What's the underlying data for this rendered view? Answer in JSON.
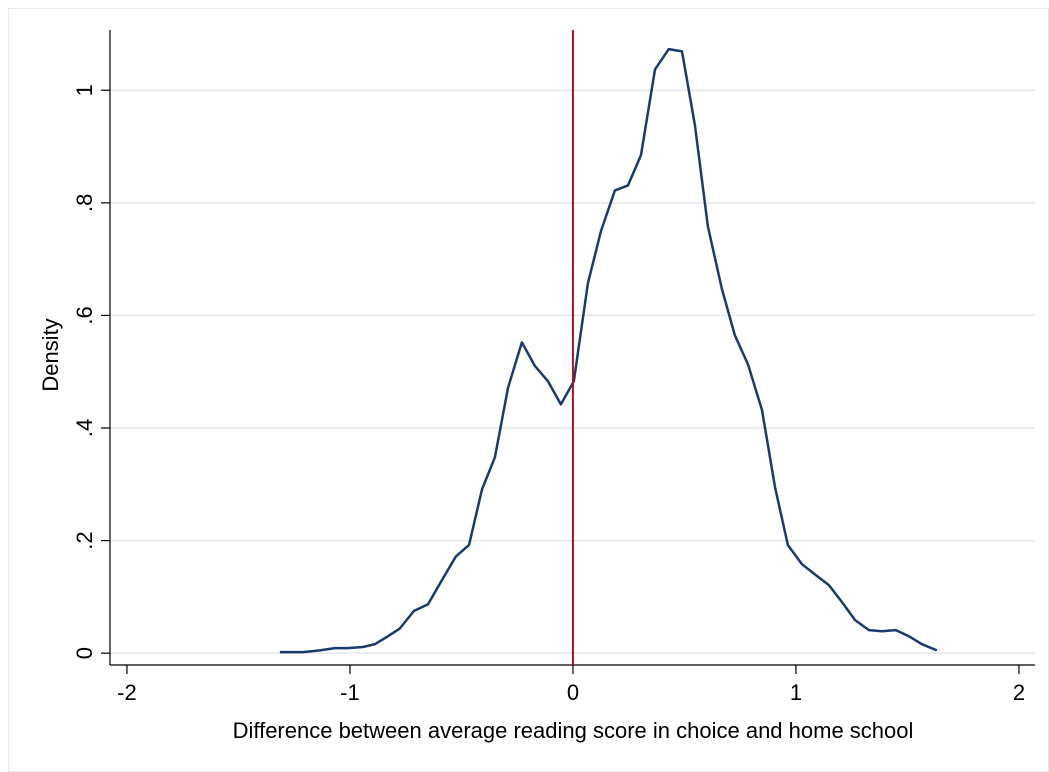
{
  "chart_data": {
    "type": "line",
    "xlabel": "Difference between average reading score in choice and home school",
    "ylabel": "Density",
    "x": [
      -1.314,
      -1.211,
      -1.135,
      -1.067,
      -1.009,
      -0.942,
      -0.888,
      -0.83,
      -0.776,
      -0.713,
      -0.65,
      -0.587,
      -0.525,
      -0.466,
      -0.408,
      -0.35,
      -0.291,
      -0.229,
      -0.17,
      -0.112,
      -0.054,
      0.004,
      0.067,
      0.126,
      0.188,
      0.247,
      0.305,
      0.368,
      0.43,
      0.489,
      0.547,
      0.605,
      0.668,
      0.726,
      0.785,
      0.848,
      0.906,
      0.964,
      1.027,
      1.085,
      1.148,
      1.206,
      1.265,
      1.327,
      1.386,
      1.448,
      1.507,
      1.565,
      1.632
    ],
    "values": [
      0.002,
      0.002,
      0.005,
      0.009,
      0.009,
      0.011,
      0.016,
      0.03,
      0.044,
      0.075,
      0.087,
      0.13,
      0.172,
      0.192,
      0.291,
      0.348,
      0.472,
      0.552,
      0.51,
      0.483,
      0.442,
      0.483,
      0.657,
      0.75,
      0.822,
      0.831,
      0.885,
      1.037,
      1.073,
      1.069,
      0.938,
      0.758,
      0.647,
      0.565,
      0.513,
      0.432,
      0.295,
      0.192,
      0.158,
      0.14,
      0.121,
      0.091,
      0.059,
      0.041,
      0.039,
      0.041,
      0.03,
      0.016,
      0.005
    ],
    "color": "#1a3a6e",
    "xline": 0,
    "xline_color": "#b5121b",
    "xlim": [
      -2.076,
      2.072
    ],
    "xticks": [
      -2,
      -1,
      0,
      1,
      2
    ],
    "ylim": [
      -0.021,
      1.107
    ],
    "yticks": [
      0,
      {
        "value": 0.2,
        "label": ".2"
      },
      {
        "value": 0.4,
        "label": ".4"
      },
      {
        "value": 0.6,
        "label": ".6"
      },
      {
        "value": 0.8,
        "label": ".8"
      },
      1
    ],
    "grid": true
  }
}
